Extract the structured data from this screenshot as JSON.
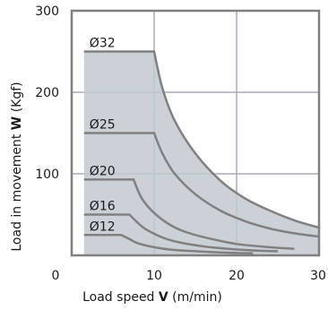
{
  "chart_data": {
    "type": "line",
    "title": "",
    "xlabel": "Load speed V (m/min)",
    "ylabel": "Load in movement W (Kgf)",
    "xlabel_parts": {
      "pre": "Load speed ",
      "bold": "V",
      "post": " (m/min)"
    },
    "ylabel_parts": {
      "pre": "Load in movement ",
      "bold": "W",
      "post": " (Kgf)"
    },
    "xlim": [
      0,
      30
    ],
    "ylim": [
      0,
      300
    ],
    "x_ticks": [
      "0",
      "10",
      "20",
      "30"
    ],
    "y_ticks": [
      "100",
      "200",
      "300"
    ],
    "grid": true,
    "colors": {
      "fill": "#c3c9d0",
      "line": "#808080",
      "grid": "#a8aeb5",
      "frame": "#808080"
    },
    "series": [
      {
        "name": "Ø32",
        "points": [
          [
            1.5,
            250
          ],
          [
            10,
            250
          ],
          [
            11,
            205
          ],
          [
            12.5,
            165
          ],
          [
            15,
            125
          ],
          [
            18,
            92
          ],
          [
            21,
            70
          ],
          [
            24,
            55
          ],
          [
            27,
            43
          ],
          [
            30,
            34
          ]
        ]
      },
      {
        "name": "Ø25",
        "points": [
          [
            1.5,
            150
          ],
          [
            10,
            150
          ],
          [
            11,
            125
          ],
          [
            12.5,
            100
          ],
          [
            15,
            75
          ],
          [
            18,
            55
          ],
          [
            21,
            42
          ],
          [
            24,
            33
          ],
          [
            27,
            27
          ],
          [
            30,
            23
          ]
        ]
      },
      {
        "name": "Ø20",
        "points": [
          [
            1.5,
            93
          ],
          [
            7.5,
            93
          ],
          [
            8.5,
            70
          ],
          [
            10,
            52
          ],
          [
            12,
            37
          ],
          [
            14,
            28
          ],
          [
            17,
            20
          ],
          [
            20,
            14
          ],
          [
            24,
            10
          ],
          [
            27,
            8
          ]
        ]
      },
      {
        "name": "Ø16",
        "points": [
          [
            1.5,
            50
          ],
          [
            7,
            50
          ],
          [
            8,
            40
          ],
          [
            9,
            32
          ],
          [
            11,
            22
          ],
          [
            13,
            16
          ],
          [
            16,
            11
          ],
          [
            19,
            8
          ],
          [
            22,
            6
          ],
          [
            25,
            5
          ]
        ]
      },
      {
        "name": "Ø12",
        "points": [
          [
            1.5,
            25
          ],
          [
            6,
            25
          ],
          [
            7,
            20
          ],
          [
            8,
            15
          ],
          [
            10,
            10
          ],
          [
            12,
            7
          ],
          [
            15,
            5
          ],
          [
            18,
            3.5
          ],
          [
            22,
            2.5
          ]
        ]
      }
    ]
  }
}
